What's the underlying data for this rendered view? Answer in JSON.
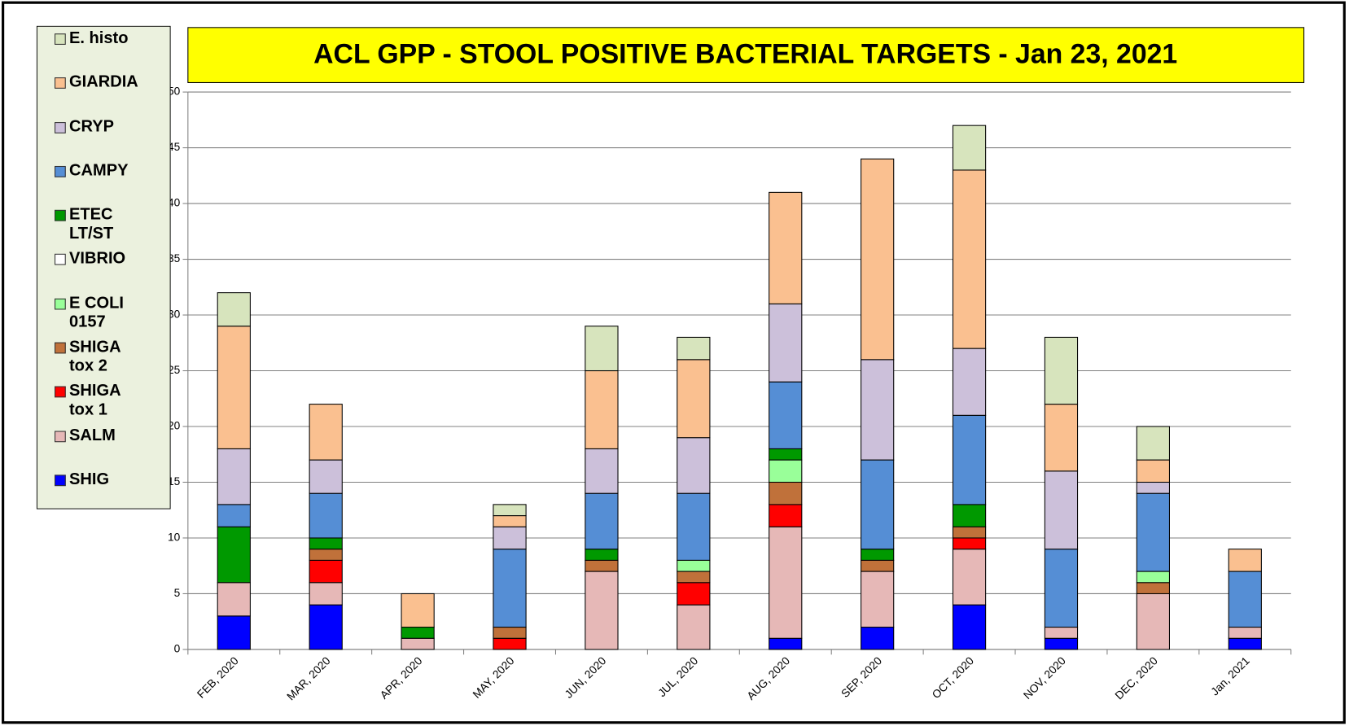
{
  "chart_data": {
    "type": "stacked_bar",
    "title": "ACL GPP - STOOL POSITIVE BACTERIAL TARGETS - Jan 23, 2021",
    "categories": [
      "FEB, 2020",
      "MAR, 2020",
      "APR, 2020",
      "MAY, 2020",
      "JUN, 2020",
      "JUL, 2020",
      "AUG, 2020",
      "SEP, 2020",
      "OCT, 2020",
      "NOV, 2020",
      "DEC, 2020",
      "Jan, 2021"
    ],
    "series": [
      {
        "name": "SHIG",
        "color": "#0000ff",
        "values": [
          3,
          4,
          0,
          0,
          0,
          0,
          1,
          2,
          4,
          1,
          0,
          1
        ]
      },
      {
        "name": "SALM",
        "color": "#e6b8b7",
        "values": [
          3,
          2,
          1,
          0,
          7,
          4,
          10,
          5,
          5,
          1,
          5,
          1
        ]
      },
      {
        "name": "SHIGA tox 1",
        "color": "#ff0000",
        "values": [
          0,
          2,
          0,
          1,
          0,
          2,
          2,
          0,
          1,
          0,
          0,
          0
        ]
      },
      {
        "name": "SHIGA tox 2",
        "color": "#c0713a",
        "values": [
          0,
          1,
          0,
          1,
          1,
          1,
          2,
          1,
          1,
          0,
          1,
          0
        ]
      },
      {
        "name": "E COLI 0157",
        "color": "#99ff99",
        "values": [
          0,
          0,
          0,
          0,
          0,
          1,
          2,
          0,
          0,
          0,
          1,
          0
        ]
      },
      {
        "name": "VIBRIO",
        "color": "#ffffff",
        "values": [
          0,
          0,
          0,
          0,
          0,
          0,
          0,
          0,
          0,
          0,
          0,
          0
        ]
      },
      {
        "name": "ETEC LT/ST",
        "color": "#009900",
        "values": [
          5,
          1,
          1,
          0,
          1,
          0,
          1,
          1,
          2,
          0,
          0,
          0
        ]
      },
      {
        "name": "CAMPY",
        "color": "#558ed5",
        "values": [
          2,
          4,
          0,
          7,
          5,
          6,
          6,
          8,
          8,
          7,
          7,
          5
        ]
      },
      {
        "name": "CRYP",
        "color": "#ccc0da",
        "values": [
          5,
          3,
          0,
          2,
          4,
          5,
          7,
          9,
          6,
          7,
          1,
          0
        ]
      },
      {
        "name": "GIARDIA",
        "color": "#fac090",
        "values": [
          11,
          5,
          3,
          1,
          7,
          7,
          10,
          18,
          16,
          6,
          2,
          2
        ]
      },
      {
        "name": "E. histo",
        "color": "#d7e4bd",
        "values": [
          3,
          0,
          0,
          1,
          4,
          2,
          0,
          0,
          4,
          6,
          3,
          0
        ]
      }
    ],
    "ylim": [
      0,
      50
    ],
    "yticks": [
      0,
      5,
      10,
      15,
      20,
      25,
      30,
      35,
      40,
      45,
      50
    ],
    "grid": true,
    "legend": "left"
  }
}
